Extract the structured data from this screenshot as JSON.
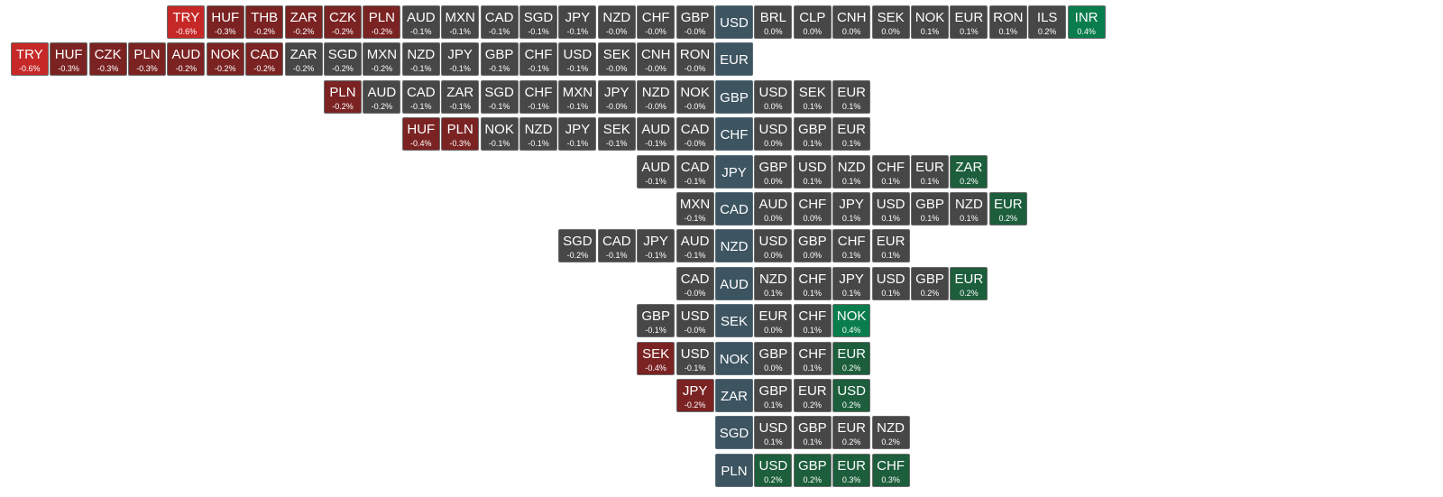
{
  "rows": [
    {
      "base": "USD",
      "left": [
        {
          "code": "TRY",
          "change": "-0.6%",
          "color": "#c62828"
        },
        {
          "code": "HUF",
          "change": "-0.3%",
          "color": "#7b2323"
        },
        {
          "code": "THB",
          "change": "-0.2%",
          "color": "#7b2323"
        },
        {
          "code": "ZAR",
          "change": "-0.2%",
          "color": "#7b2323"
        },
        {
          "code": "CZK",
          "change": "-0.2%",
          "color": "#7b2323"
        },
        {
          "code": "PLN",
          "change": "-0.2%",
          "color": "#7b2323"
        },
        {
          "code": "AUD",
          "change": "-0.1%",
          "color": "#474747"
        },
        {
          "code": "MXN",
          "change": "-0.1%",
          "color": "#474747"
        },
        {
          "code": "CAD",
          "change": "-0.1%",
          "color": "#474747"
        },
        {
          "code": "SGD",
          "change": "-0.1%",
          "color": "#474747"
        },
        {
          "code": "JPY",
          "change": "-0.1%",
          "color": "#474747"
        },
        {
          "code": "NZD",
          "change": "-0.0%",
          "color": "#474747"
        },
        {
          "code": "CHF",
          "change": "-0.0%",
          "color": "#474747"
        },
        {
          "code": "GBP",
          "change": "-0.0%",
          "color": "#474747"
        }
      ],
      "right": [
        {
          "code": "BRL",
          "change": "0.0%",
          "color": "#474747"
        },
        {
          "code": "CLP",
          "change": "0.0%",
          "color": "#474747"
        },
        {
          "code": "CNH",
          "change": "0.0%",
          "color": "#474747"
        },
        {
          "code": "SEK",
          "change": "0.0%",
          "color": "#474747"
        },
        {
          "code": "NOK",
          "change": "0.1%",
          "color": "#474747"
        },
        {
          "code": "EUR",
          "change": "0.1%",
          "color": "#474747"
        },
        {
          "code": "RON",
          "change": "0.1%",
          "color": "#474747"
        },
        {
          "code": "ILS",
          "change": "0.2%",
          "color": "#474747"
        },
        {
          "code": "INR",
          "change": "0.4%",
          "color": "#0a7d4d"
        }
      ]
    },
    {
      "base": "EUR",
      "left": [
        {
          "code": "TRY",
          "change": "-0.6%",
          "color": "#c62828"
        },
        {
          "code": "HUF",
          "change": "-0.3%",
          "color": "#7b2323"
        },
        {
          "code": "CZK",
          "change": "-0.3%",
          "color": "#7b2323"
        },
        {
          "code": "PLN",
          "change": "-0.3%",
          "color": "#7b2323"
        },
        {
          "code": "AUD",
          "change": "-0.2%",
          "color": "#7b2323"
        },
        {
          "code": "NOK",
          "change": "-0.2%",
          "color": "#7b2323"
        },
        {
          "code": "CAD",
          "change": "-0.2%",
          "color": "#7b2323"
        },
        {
          "code": "ZAR",
          "change": "-0.2%",
          "color": "#474747"
        },
        {
          "code": "SGD",
          "change": "-0.2%",
          "color": "#474747"
        },
        {
          "code": "MXN",
          "change": "-0.2%",
          "color": "#474747"
        },
        {
          "code": "NZD",
          "change": "-0.1%",
          "color": "#474747"
        },
        {
          "code": "JPY",
          "change": "-0.1%",
          "color": "#474747"
        },
        {
          "code": "GBP",
          "change": "-0.1%",
          "color": "#474747"
        },
        {
          "code": "CHF",
          "change": "-0.1%",
          "color": "#474747"
        },
        {
          "code": "USD",
          "change": "-0.1%",
          "color": "#474747"
        },
        {
          "code": "SEK",
          "change": "-0.0%",
          "color": "#474747"
        },
        {
          "code": "CNH",
          "change": "-0.0%",
          "color": "#474747"
        },
        {
          "code": "RON",
          "change": "-0.0%",
          "color": "#474747"
        }
      ],
      "right": []
    },
    {
      "base": "GBP",
      "left": [
        {
          "code": "PLN",
          "change": "-0.2%",
          "color": "#7b2323"
        },
        {
          "code": "AUD",
          "change": "-0.2%",
          "color": "#474747"
        },
        {
          "code": "CAD",
          "change": "-0.1%",
          "color": "#474747"
        },
        {
          "code": "ZAR",
          "change": "-0.1%",
          "color": "#474747"
        },
        {
          "code": "SGD",
          "change": "-0.1%",
          "color": "#474747"
        },
        {
          "code": "CHF",
          "change": "-0.1%",
          "color": "#474747"
        },
        {
          "code": "MXN",
          "change": "-0.1%",
          "color": "#474747"
        },
        {
          "code": "JPY",
          "change": "-0.0%",
          "color": "#474747"
        },
        {
          "code": "NZD",
          "change": "-0.0%",
          "color": "#474747"
        },
        {
          "code": "NOK",
          "change": "-0.0%",
          "color": "#474747"
        }
      ],
      "right": [
        {
          "code": "USD",
          "change": "0.0%",
          "color": "#474747"
        },
        {
          "code": "SEK",
          "change": "0.1%",
          "color": "#474747"
        },
        {
          "code": "EUR",
          "change": "0.1%",
          "color": "#474747"
        }
      ]
    },
    {
      "base": "CHF",
      "left": [
        {
          "code": "HUF",
          "change": "-0.4%",
          "color": "#7b2323"
        },
        {
          "code": "PLN",
          "change": "-0.3%",
          "color": "#7b2323"
        },
        {
          "code": "NOK",
          "change": "-0.1%",
          "color": "#474747"
        },
        {
          "code": "NZD",
          "change": "-0.1%",
          "color": "#474747"
        },
        {
          "code": "JPY",
          "change": "-0.1%",
          "color": "#474747"
        },
        {
          "code": "SEK",
          "change": "-0.1%",
          "color": "#474747"
        },
        {
          "code": "AUD",
          "change": "-0.1%",
          "color": "#474747"
        },
        {
          "code": "CAD",
          "change": "-0.0%",
          "color": "#474747"
        }
      ],
      "right": [
        {
          "code": "USD",
          "change": "0.0%",
          "color": "#474747"
        },
        {
          "code": "GBP",
          "change": "0.1%",
          "color": "#474747"
        },
        {
          "code": "EUR",
          "change": "0.1%",
          "color": "#474747"
        }
      ]
    },
    {
      "base": "JPY",
      "left": [
        {
          "code": "AUD",
          "change": "-0.1%",
          "color": "#474747"
        },
        {
          "code": "CAD",
          "change": "-0.1%",
          "color": "#474747"
        }
      ],
      "right": [
        {
          "code": "GBP",
          "change": "0.0%",
          "color": "#474747"
        },
        {
          "code": "USD",
          "change": "0.1%",
          "color": "#474747"
        },
        {
          "code": "NZD",
          "change": "0.1%",
          "color": "#474747"
        },
        {
          "code": "CHF",
          "change": "0.1%",
          "color": "#474747"
        },
        {
          "code": "EUR",
          "change": "0.1%",
          "color": "#474747"
        },
        {
          "code": "ZAR",
          "change": "0.2%",
          "color": "#1d5e3c"
        }
      ]
    },
    {
      "base": "CAD",
      "left": [
        {
          "code": "MXN",
          "change": "-0.1%",
          "color": "#474747"
        }
      ],
      "right": [
        {
          "code": "AUD",
          "change": "0.0%",
          "color": "#474747"
        },
        {
          "code": "CHF",
          "change": "0.0%",
          "color": "#474747"
        },
        {
          "code": "JPY",
          "change": "0.1%",
          "color": "#474747"
        },
        {
          "code": "USD",
          "change": "0.1%",
          "color": "#474747"
        },
        {
          "code": "GBP",
          "change": "0.1%",
          "color": "#474747"
        },
        {
          "code": "NZD",
          "change": "0.1%",
          "color": "#474747"
        },
        {
          "code": "EUR",
          "change": "0.2%",
          "color": "#1d5e3c"
        }
      ]
    },
    {
      "base": "NZD",
      "left": [
        {
          "code": "SGD",
          "change": "-0.2%",
          "color": "#474747"
        },
        {
          "code": "CAD",
          "change": "-0.1%",
          "color": "#474747"
        },
        {
          "code": "JPY",
          "change": "-0.1%",
          "color": "#474747"
        },
        {
          "code": "AUD",
          "change": "-0.1%",
          "color": "#474747"
        }
      ],
      "right": [
        {
          "code": "USD",
          "change": "0.0%",
          "color": "#474747"
        },
        {
          "code": "GBP",
          "change": "0.0%",
          "color": "#474747"
        },
        {
          "code": "CHF",
          "change": "0.1%",
          "color": "#474747"
        },
        {
          "code": "EUR",
          "change": "0.1%",
          "color": "#474747"
        }
      ]
    },
    {
      "base": "AUD",
      "left": [
        {
          "code": "CAD",
          "change": "-0.0%",
          "color": "#474747"
        }
      ],
      "right": [
        {
          "code": "NZD",
          "change": "0.1%",
          "color": "#474747"
        },
        {
          "code": "CHF",
          "change": "0.1%",
          "color": "#474747"
        },
        {
          "code": "JPY",
          "change": "0.1%",
          "color": "#474747"
        },
        {
          "code": "USD",
          "change": "0.1%",
          "color": "#474747"
        },
        {
          "code": "GBP",
          "change": "0.2%",
          "color": "#474747"
        },
        {
          "code": "EUR",
          "change": "0.2%",
          "color": "#1d5e3c"
        }
      ]
    },
    {
      "base": "SEK",
      "left": [
        {
          "code": "GBP",
          "change": "-0.1%",
          "color": "#474747"
        },
        {
          "code": "USD",
          "change": "-0.0%",
          "color": "#474747"
        }
      ],
      "right": [
        {
          "code": "EUR",
          "change": "0.0%",
          "color": "#474747"
        },
        {
          "code": "CHF",
          "change": "0.1%",
          "color": "#474747"
        },
        {
          "code": "NOK",
          "change": "0.4%",
          "color": "#0a7d4d"
        }
      ]
    },
    {
      "base": "NOK",
      "left": [
        {
          "code": "SEK",
          "change": "-0.4%",
          "color": "#7b2323"
        },
        {
          "code": "USD",
          "change": "-0.1%",
          "color": "#474747"
        }
      ],
      "right": [
        {
          "code": "GBP",
          "change": "0.0%",
          "color": "#474747"
        },
        {
          "code": "CHF",
          "change": "0.1%",
          "color": "#474747"
        },
        {
          "code": "EUR",
          "change": "0.2%",
          "color": "#1d5e3c"
        }
      ]
    },
    {
      "base": "ZAR",
      "left": [
        {
          "code": "JPY",
          "change": "-0.2%",
          "color": "#7b2323"
        }
      ],
      "right": [
        {
          "code": "GBP",
          "change": "0.1%",
          "color": "#474747"
        },
        {
          "code": "EUR",
          "change": "0.2%",
          "color": "#474747"
        },
        {
          "code": "USD",
          "change": "0.2%",
          "color": "#1d5e3c"
        }
      ]
    },
    {
      "base": "SGD",
      "left": [],
      "right": [
        {
          "code": "USD",
          "change": "0.1%",
          "color": "#474747"
        },
        {
          "code": "GBP",
          "change": "0.1%",
          "color": "#474747"
        },
        {
          "code": "EUR",
          "change": "0.2%",
          "color": "#474747"
        },
        {
          "code": "NZD",
          "change": "0.2%",
          "color": "#474747"
        }
      ]
    },
    {
      "base": "PLN",
      "left": [],
      "right": [
        {
          "code": "USD",
          "change": "0.2%",
          "color": "#1d5e3c"
        },
        {
          "code": "GBP",
          "change": "0.2%",
          "color": "#1d5e3c"
        },
        {
          "code": "EUR",
          "change": "0.3%",
          "color": "#1d5e3c"
        },
        {
          "code": "CHF",
          "change": "0.3%",
          "color": "#1d5e3c"
        }
      ]
    }
  ]
}
